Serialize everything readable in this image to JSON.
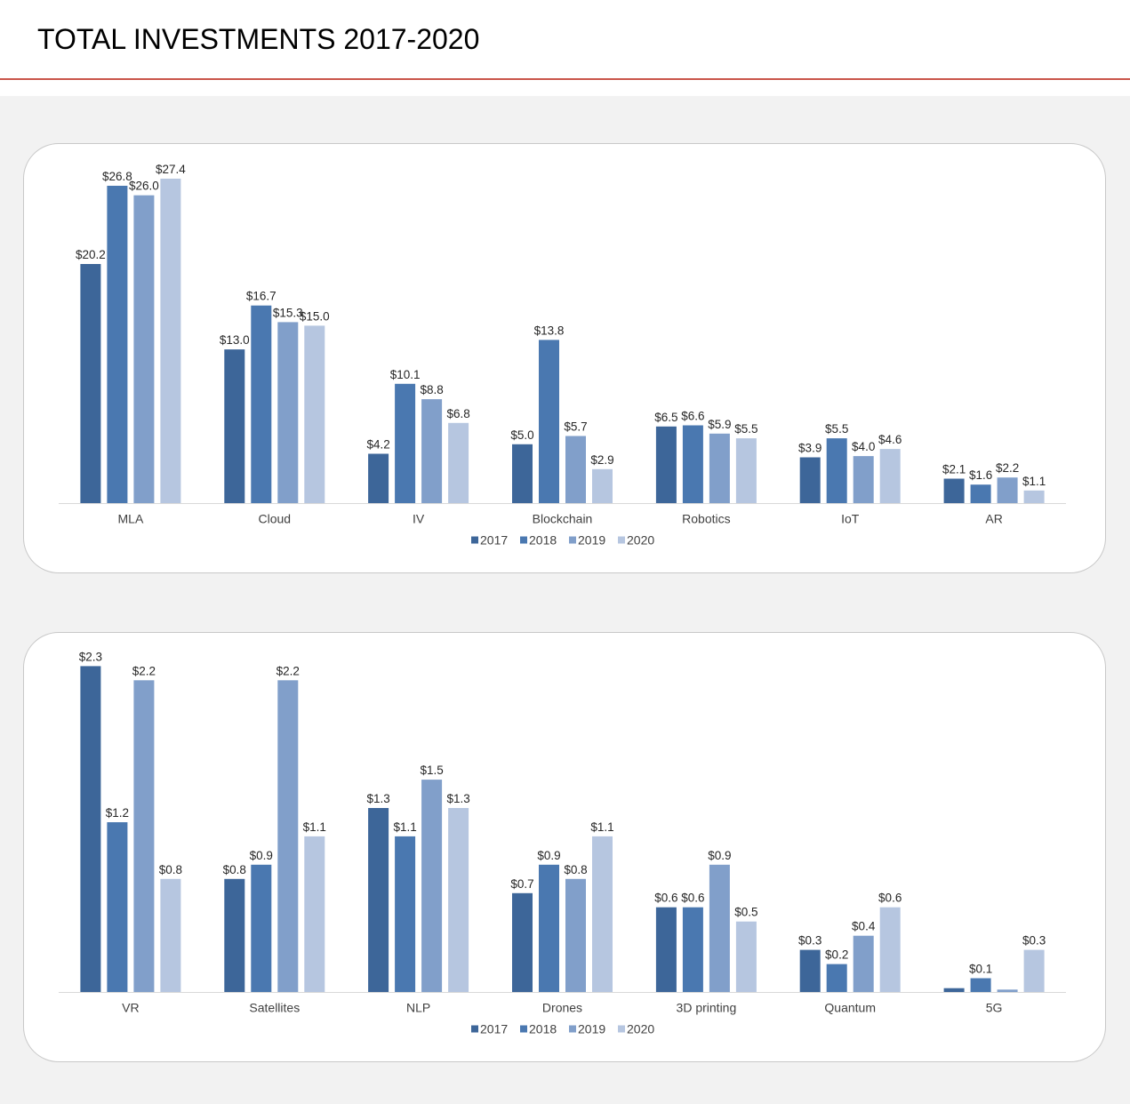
{
  "page": {
    "title": "TOTAL INVESTMENTS 2017-2020"
  },
  "colors": {
    "rule": "#c9554a",
    "series": [
      "#3d6699",
      "#4a78b0",
      "#819fca",
      "#b6c6e0"
    ]
  },
  "chart_data": [
    {
      "type": "bar",
      "categories": [
        "MLA",
        "Cloud",
        "IV",
        "Blockchain",
        "Robotics",
        "IoT",
        "AR"
      ],
      "series": [
        {
          "name": "2017",
          "values": [
            20.2,
            13.0,
            4.2,
            5.0,
            6.5,
            3.9,
            2.1
          ]
        },
        {
          "name": "2018",
          "values": [
            26.8,
            16.7,
            10.1,
            13.8,
            6.6,
            5.5,
            1.6
          ]
        },
        {
          "name": "2019",
          "values": [
            26.0,
            15.3,
            8.8,
            5.7,
            5.9,
            4.0,
            2.2
          ]
        },
        {
          "name": "2020",
          "values": [
            27.4,
            15.0,
            6.8,
            2.9,
            5.5,
            4.6,
            1.1
          ]
        }
      ],
      "value_prefix": "$",
      "ylim": [
        0,
        28.6
      ],
      "grid": false,
      "legend_position": "bottom"
    },
    {
      "type": "bar",
      "categories": [
        "VR",
        "Satellites",
        "NLP",
        "Drones",
        "3D printing",
        "Quantum",
        "5G"
      ],
      "series": [
        {
          "name": "2017",
          "values": [
            2.3,
            0.8,
            1.3,
            0.7,
            0.6,
            0.3,
            0.03
          ]
        },
        {
          "name": "2018",
          "values": [
            1.2,
            0.9,
            1.1,
            0.9,
            0.6,
            0.2,
            0.1
          ]
        },
        {
          "name": "2019",
          "values": [
            2.2,
            2.2,
            1.5,
            0.8,
            0.9,
            0.4,
            0.02
          ]
        },
        {
          "name": "2020",
          "values": [
            0.8,
            1.1,
            1.3,
            1.1,
            0.5,
            0.6,
            0.3
          ]
        }
      ],
      "data_labels": [
        [
          "$2.3",
          "$0.8",
          "$1.3",
          "$0.7",
          "$0.6",
          "$0.3",
          ""
        ],
        [
          "$1.2",
          "$0.9",
          "$1.1",
          "$0.9",
          "$0.6",
          "$0.2",
          "$0.1"
        ],
        [
          "$2.2",
          "$2.2",
          "$1.5",
          "$0.8",
          "$0.9",
          "$0.4",
          ""
        ],
        [
          "$0.8",
          "$1.1",
          "$1.3",
          "$1.1",
          "$0.5",
          "$0.6",
          "$0.3"
        ]
      ],
      "value_prefix": "$",
      "ylim": [
        0,
        2.39
      ],
      "grid": false,
      "legend_position": "bottom"
    }
  ]
}
